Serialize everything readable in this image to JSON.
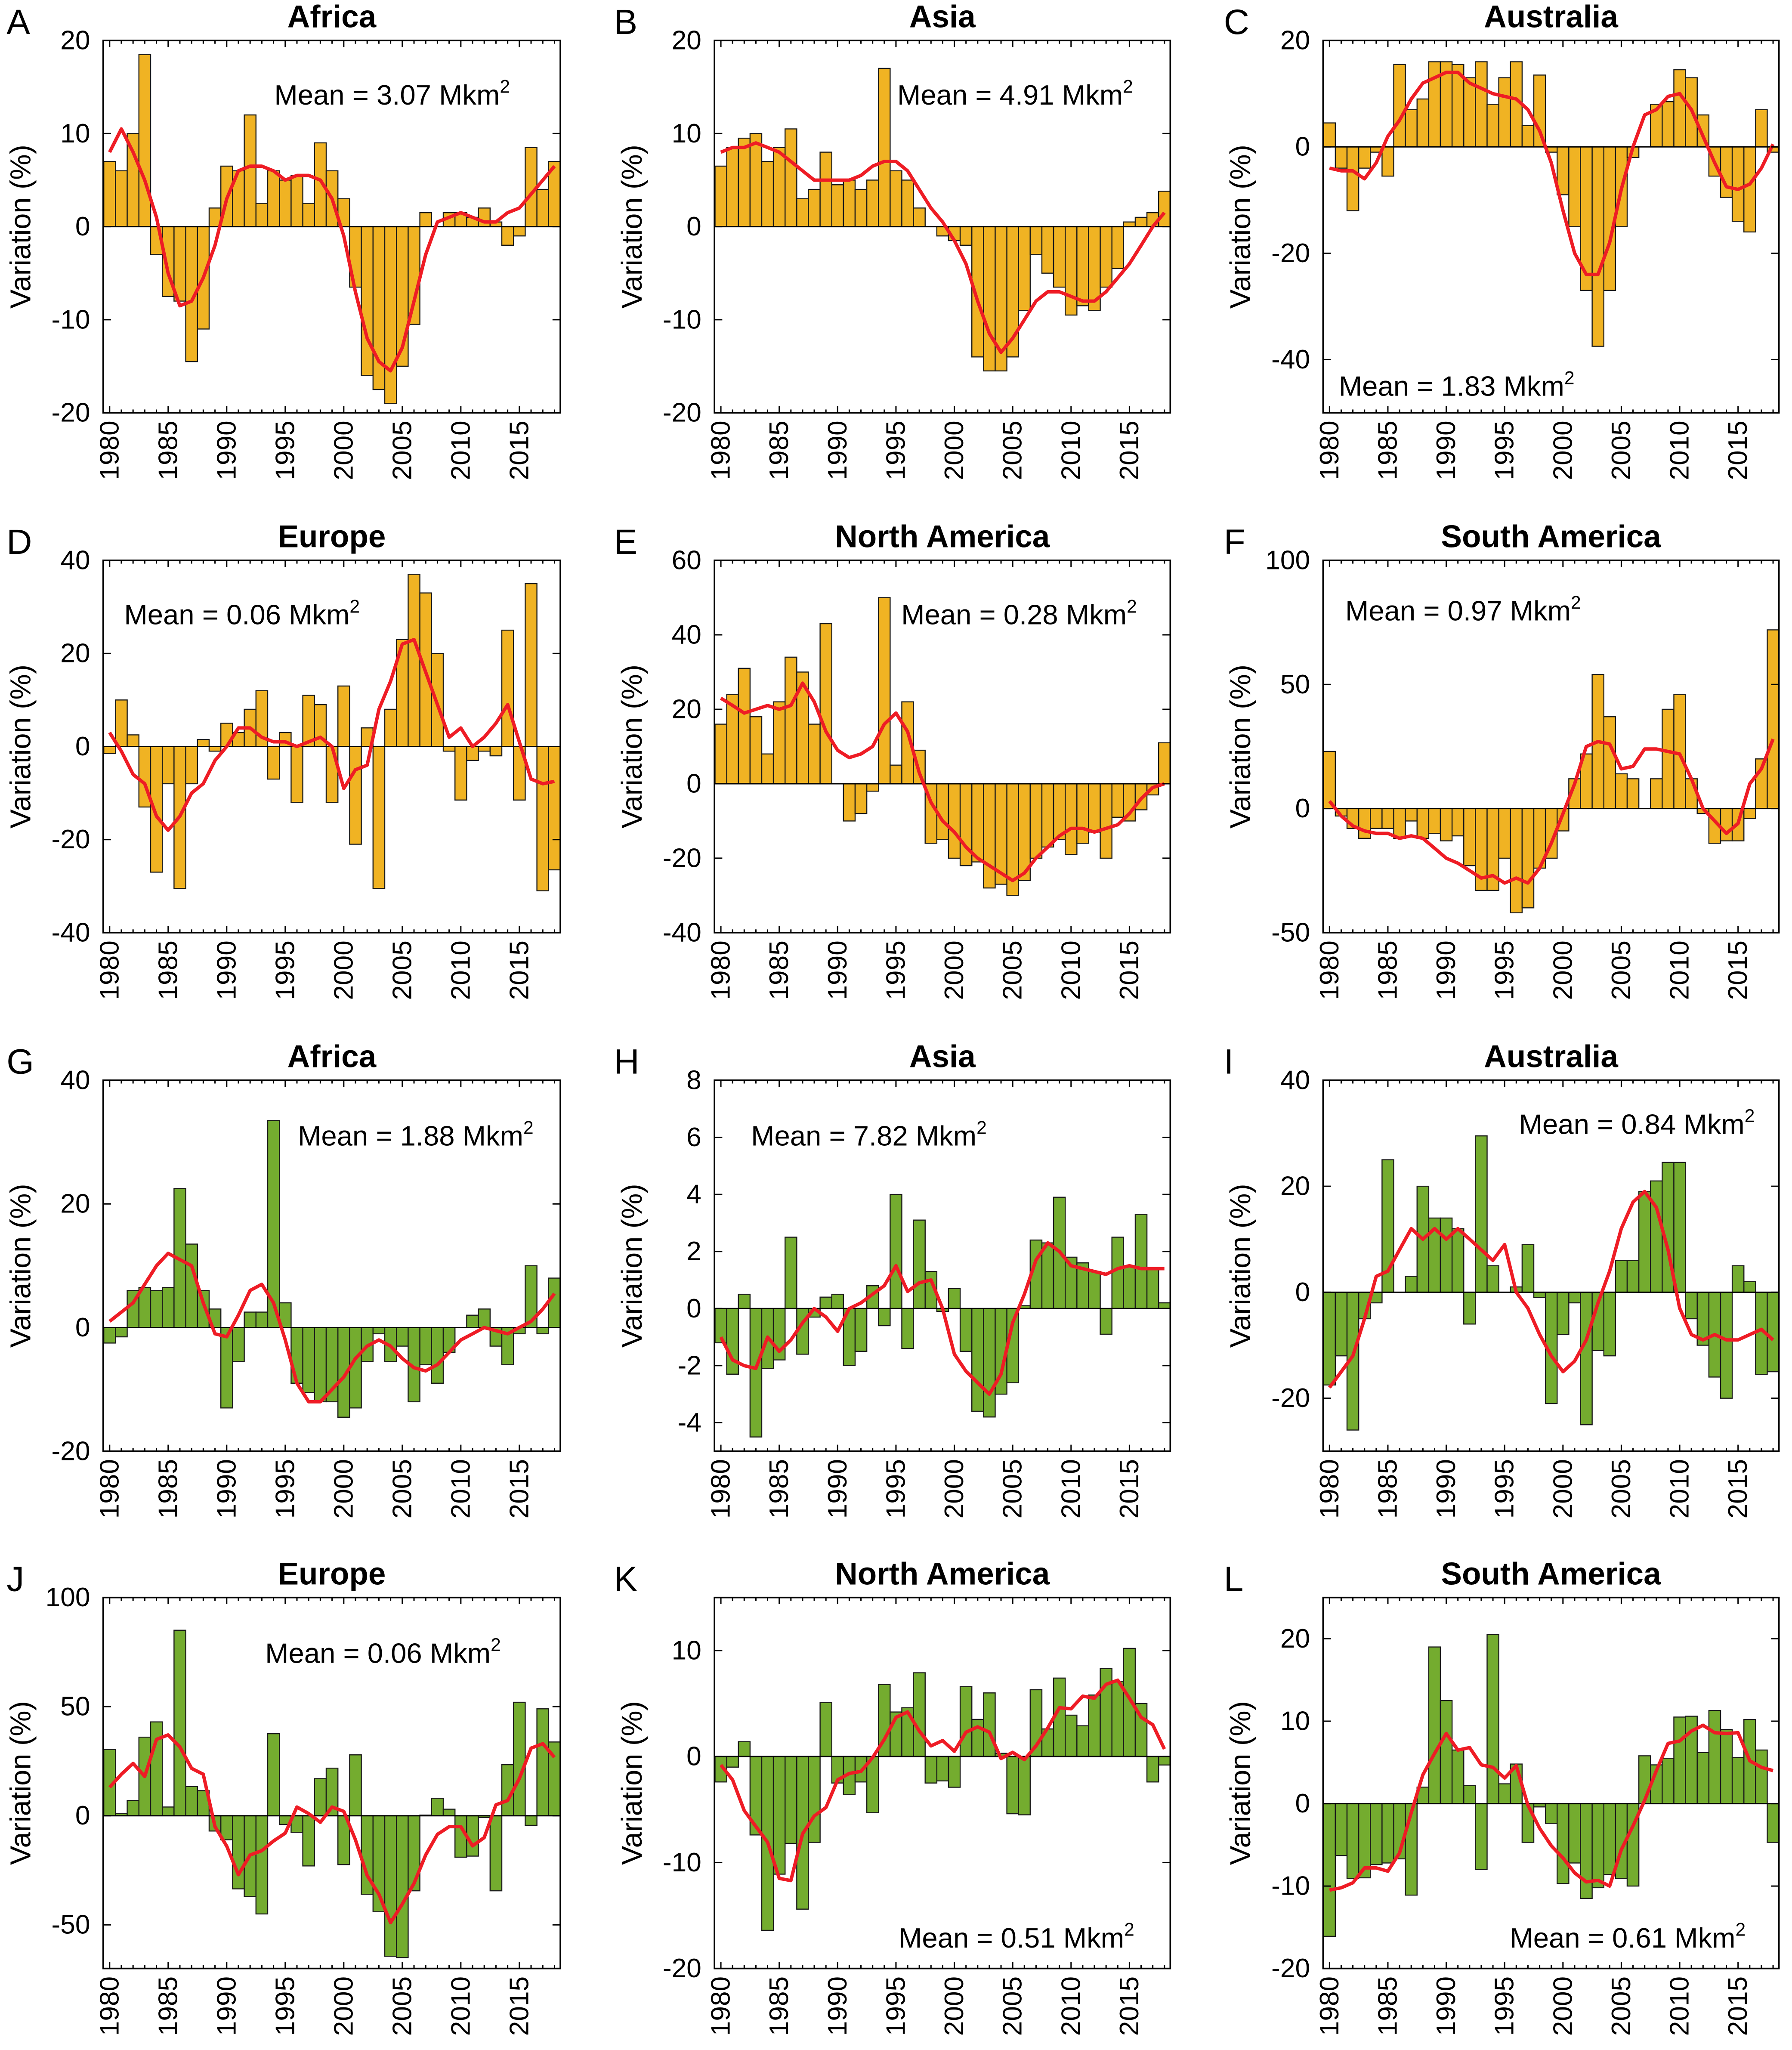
{
  "colors": {
    "bar_top_rows": "#F0B323",
    "bar_bottom_rows": "#74AC2F",
    "bar_edge": "#1a1a1a",
    "smooth_line": "#EE1C25"
  },
  "chart_data": [
    {
      "panel": "A",
      "type": "bar",
      "title": "Africa",
      "ylabel": "Variation (%)",
      "mean_text": "Mean = 3.07 Mkm",
      "mean_sup": "2",
      "ylim": [
        -20,
        20
      ],
      "yticks": [
        -20,
        -10,
        0,
        10,
        20
      ],
      "x_range": [
        1980,
        2018
      ],
      "xticks": [
        1980,
        1985,
        1990,
        1995,
        2000,
        2005,
        2010,
        2015
      ],
      "bars": [
        7,
        6,
        10,
        18.5,
        -3,
        -7.5,
        -8,
        -14.5,
        -11,
        2,
        6.5,
        6,
        12,
        2.5,
        6,
        5,
        5.5,
        2.5,
        9,
        6,
        3,
        -6.5,
        -16,
        -17.5,
        -19,
        -15,
        -10.5,
        1.5,
        0,
        1.5,
        1.5,
        1,
        2,
        0.5,
        -2,
        -1,
        8.5,
        4,
        7
      ],
      "smooth": [
        8,
        10.5,
        8,
        5,
        1,
        -5,
        -8.5,
        -8,
        -5.5,
        -2,
        3,
        6,
        6.5,
        6.5,
        6,
        5,
        5.5,
        5.5,
        5,
        3,
        -1,
        -7,
        -12,
        -14.5,
        -15.5,
        -13,
        -8,
        -3,
        0.5,
        1,
        1.5,
        1,
        0.5,
        0.5,
        1.5,
        2,
        3.5,
        5,
        6.5
      ]
    },
    {
      "panel": "B",
      "type": "bar",
      "title": "Asia",
      "ylabel": "Variation (%)",
      "mean_text": "Mean = 4.91 Mkm",
      "mean_sup": "2",
      "ylim": [
        -20,
        20
      ],
      "yticks": [
        -20,
        -10,
        0,
        10,
        20
      ],
      "x_range": [
        1980,
        2018
      ],
      "xticks": [
        1980,
        1985,
        1990,
        1995,
        2000,
        2005,
        2010,
        2015
      ],
      "bars": [
        6.5,
        8.5,
        9.5,
        10,
        7,
        8.5,
        10.5,
        3,
        4,
        8,
        4.5,
        5,
        4,
        5,
        17,
        6,
        5,
        2,
        0,
        -1,
        -1.5,
        -2,
        -14,
        -15.5,
        -15.5,
        -14,
        -9,
        -3,
        -5,
        -6.5,
        -9.5,
        -8.5,
        -9,
        -6.5,
        -4.5,
        0.5,
        1,
        1.5,
        3.8
      ],
      "smooth": [
        8,
        8.5,
        8.5,
        9,
        8.5,
        8,
        7,
        6,
        5,
        5,
        5,
        5,
        5.5,
        6.5,
        7,
        7,
        6,
        4,
        2,
        0.5,
        -1.5,
        -4,
        -8,
        -11.5,
        -13.5,
        -12,
        -10,
        -8,
        -7,
        -7,
        -7.5,
        -8,
        -8,
        -7,
        -5.5,
        -4,
        -2,
        0,
        1.5
      ]
    },
    {
      "panel": "C",
      "type": "bar",
      "title": "Australia",
      "ylabel": "Variation (%)",
      "mean_text": "Mean = 1.83 Mkm",
      "mean_sup": "2",
      "ylim": [
        -50,
        20
      ],
      "yticks": [
        -40,
        -20,
        0,
        20
      ],
      "x_range": [
        1980,
        2018
      ],
      "xticks": [
        1980,
        1985,
        1990,
        1995,
        2000,
        2005,
        2010,
        2015
      ],
      "bars": [
        4.5,
        -4,
        -12,
        -4,
        -1,
        -5.5,
        15.5,
        7,
        9,
        16,
        16,
        15.5,
        13,
        16,
        8,
        13,
        16,
        4,
        13.5,
        -1,
        -9,
        -15,
        -27,
        -37.5,
        -27,
        -15,
        -2,
        0,
        8,
        8.5,
        14.5,
        13,
        6,
        -5.5,
        -9.5,
        -14,
        -16,
        7,
        -1
      ],
      "smooth": [
        -4,
        -4.5,
        -4.5,
        -6,
        -3,
        2,
        5,
        9,
        12,
        13,
        14,
        14,
        12,
        11,
        10,
        9.5,
        9,
        7,
        3,
        -3,
        -12,
        -20,
        -24,
        -24,
        -18,
        -8,
        0,
        6,
        7,
        9.5,
        10,
        7,
        2,
        -3,
        -7.5,
        -8,
        -7,
        -4,
        0.5
      ]
    },
    {
      "panel": "D",
      "type": "bar",
      "title": "Europe",
      "ylabel": "Variation (%)",
      "mean_text": "Mean = 0.06 Mkm",
      "mean_sup": "2",
      "ylim": [
        -40,
        40
      ],
      "yticks": [
        -40,
        -20,
        0,
        20,
        40
      ],
      "x_range": [
        1980,
        2018
      ],
      "xticks": [
        1980,
        1985,
        1990,
        1995,
        2000,
        2005,
        2010,
        2015
      ],
      "bars": [
        -1.5,
        10,
        2.5,
        -13,
        -27,
        -8,
        -30.5,
        -8,
        1.5,
        -1,
        5,
        3,
        8,
        12,
        -7,
        3,
        -12,
        11,
        9,
        -12,
        13,
        -21,
        4,
        -30.5,
        8,
        23,
        37,
        33,
        20,
        -1,
        -11.5,
        -3,
        -1,
        -2,
        25,
        -11.5,
        35,
        -31,
        -26.5
      ],
      "smooth": [
        3,
        -1,
        -6,
        -8,
        -15,
        -18,
        -15,
        -10,
        -8,
        -3,
        0,
        4,
        4,
        2,
        1,
        1,
        0,
        1,
        2,
        0,
        -9,
        -5,
        -4,
        8,
        14,
        22,
        23,
        16,
        9,
        2,
        4,
        0,
        2,
        5,
        9,
        1,
        -7,
        -8,
        -7.5
      ]
    },
    {
      "panel": "E",
      "type": "bar",
      "title": "North America",
      "ylabel": "Variation (%)",
      "mean_text": "Mean = 0.28 Mkm",
      "mean_sup": "2",
      "ylim": [
        -40,
        60
      ],
      "yticks": [
        -40,
        -20,
        0,
        20,
        40,
        60
      ],
      "x_range": [
        1980,
        2018
      ],
      "xticks": [
        1980,
        1985,
        1990,
        1995,
        2000,
        2005,
        2010,
        2015
      ],
      "bars": [
        16,
        24,
        31,
        18,
        8,
        22,
        34,
        30,
        16,
        43,
        0,
        -10,
        -8,
        -2,
        50,
        5,
        22,
        9,
        -16,
        -15,
        -20,
        -22,
        -21,
        -28,
        -27,
        -30,
        -26,
        -20,
        -17,
        -15,
        -19,
        -16,
        -13,
        -20,
        -9,
        -10,
        -7,
        -3,
        11
      ],
      "smooth": [
        23,
        21,
        19,
        20,
        21,
        20,
        21,
        27,
        22,
        14,
        9,
        7,
        8,
        10,
        16,
        19,
        14,
        3,
        -5,
        -10,
        -13,
        -17,
        -20,
        -22,
        -24,
        -26,
        -24,
        -20,
        -17,
        -14,
        -12,
        -12,
        -13,
        -12,
        -11,
        -8,
        -4,
        -1,
        0
      ]
    },
    {
      "panel": "F",
      "type": "bar",
      "title": "South America",
      "ylabel": "Variation (%)",
      "mean_text": "Mean = 0.97 Mkm",
      "mean_sup": "2",
      "ylim": [
        -50,
        100
      ],
      "yticks": [
        -50,
        0,
        50,
        100
      ],
      "x_range": [
        1980,
        2018
      ],
      "xticks": [
        1980,
        1985,
        1990,
        1995,
        2000,
        2005,
        2010,
        2015
      ],
      "bars": [
        23,
        -3,
        -8,
        -12,
        -8,
        -8,
        -12,
        -5,
        -12,
        -10,
        -13,
        -11,
        -23,
        -33,
        -33,
        -20,
        -42,
        -40,
        -24,
        -20,
        -9,
        12,
        22,
        54,
        37,
        14,
        12,
        0,
        12,
        40,
        46,
        12,
        -2,
        -14,
        -13,
        -13,
        -4,
        20,
        72
      ],
      "smooth": [
        3,
        -3,
        -7,
        -9,
        -10,
        -10,
        -12,
        -11,
        -12,
        -16,
        -20,
        -22,
        -25,
        -28,
        -27,
        -30,
        -28,
        -30,
        -24,
        -14,
        -2,
        10,
        25,
        27,
        26,
        16,
        17,
        24,
        24,
        23,
        22,
        12,
        0,
        -5,
        -10,
        -6,
        10,
        16,
        28
      ]
    },
    {
      "panel": "G",
      "type": "bar",
      "title": "Africa",
      "ylabel": "Variation (%)",
      "mean_text": "Mean = 1.88 Mkm",
      "mean_sup": "2",
      "ylim": [
        -20,
        40
      ],
      "yticks": [
        -20,
        0,
        20,
        40
      ],
      "x_range": [
        1980,
        2018
      ],
      "xticks": [
        1980,
        1985,
        1990,
        1995,
        2000,
        2005,
        2010,
        2015
      ],
      "bars": [
        -2.5,
        -1.5,
        6,
        6.5,
        6,
        6.5,
        22.5,
        13.5,
        6,
        3,
        -13,
        -5.5,
        2.5,
        2.5,
        33.5,
        4,
        -9,
        -10.5,
        -12,
        -12,
        -14.5,
        -13,
        -5.5,
        -1,
        -5.5,
        -3,
        -12,
        -6,
        -9,
        -4,
        0,
        2,
        3,
        -3,
        -6,
        -1,
        10,
        -1,
        8
      ],
      "smooth": [
        1,
        2.5,
        4,
        7,
        10,
        12,
        11,
        10,
        4,
        -1,
        -1.5,
        2,
        6,
        7,
        4,
        -2,
        -9,
        -12,
        -12,
        -10,
        -8,
        -5,
        -3,
        -2,
        -3,
        -5,
        -6.5,
        -7,
        -6,
        -4,
        -2,
        -1,
        0,
        -0.5,
        -1,
        0,
        1,
        3,
        5.5
      ]
    },
    {
      "panel": "H",
      "type": "bar",
      "title": "Asia",
      "ylabel": "Variation (%)",
      "mean_text": "Mean = 7.82 Mkm",
      "mean_sup": "2",
      "ylim": [
        -5,
        8
      ],
      "yticks": [
        -4,
        -2,
        0,
        2,
        4,
        6,
        8
      ],
      "x_range": [
        1980,
        2018
      ],
      "xticks": [
        1980,
        1985,
        1990,
        1995,
        2000,
        2005,
        2010,
        2015
      ],
      "bars": [
        -1.2,
        -2.3,
        0.5,
        -4.5,
        -2.1,
        -1.8,
        2.5,
        -1.6,
        -0.3,
        0.4,
        0.5,
        -2,
        -1.5,
        0.8,
        -0.6,
        4,
        -1.4,
        3.1,
        1.3,
        -0.1,
        0.7,
        -1.5,
        -3.6,
        -3.8,
        -3,
        -2.6,
        0.1,
        2.4,
        2.3,
        3.9,
        1.8,
        1.6,
        1.3,
        -0.9,
        2.5,
        1.5,
        3.3,
        1.4,
        0.2
      ],
      "smooth": [
        -1,
        -1.8,
        -2,
        -2.1,
        -1,
        -1.5,
        -1.1,
        -0.5,
        0,
        -0.3,
        -0.8,
        0,
        0.2,
        0.5,
        0.8,
        1.5,
        0.6,
        0.9,
        1,
        0,
        -1.6,
        -2.2,
        -2.6,
        -3,
        -2.3,
        -0.5,
        0.5,
        1.7,
        2.3,
        2,
        1.5,
        1.4,
        1.3,
        1.2,
        1.4,
        1.5,
        1.4,
        1.4,
        1.4
      ]
    },
    {
      "panel": "I",
      "type": "bar",
      "title": "Australia",
      "ylabel": "Variation (%)",
      "mean_text": "Mean = 0.84 Mkm",
      "mean_sup": "2",
      "ylim": [
        -30,
        40
      ],
      "yticks": [
        -20,
        0,
        20,
        40
      ],
      "x_range": [
        1980,
        2018
      ],
      "xticks": [
        1980,
        1985,
        1990,
        1995,
        2000,
        2005,
        2010,
        2015
      ],
      "bars": [
        -17.5,
        -12,
        -26,
        -5,
        -2,
        25,
        0,
        3,
        20,
        14,
        14,
        12,
        -6,
        29.5,
        5,
        0,
        1,
        9,
        -1,
        -21,
        -8,
        -2,
        -25,
        -11,
        -12,
        6,
        6,
        19,
        21,
        24.5,
        24.5,
        -5,
        -10,
        -16,
        -20,
        5,
        2,
        -15.5,
        -15
      ],
      "smooth": [
        -18,
        -15,
        -12,
        -5,
        3,
        4,
        8,
        12,
        10,
        12,
        10,
        12,
        10,
        8,
        6,
        9,
        0,
        -3,
        -8,
        -12,
        -15,
        -13,
        -9,
        -2,
        4,
        12,
        17,
        19,
        16,
        8,
        -3,
        -8,
        -9,
        -8,
        -9,
        -9,
        -8,
        -7,
        -9
      ]
    },
    {
      "panel": "J",
      "type": "bar",
      "title": "Europe",
      "ylabel": "Variation (%)",
      "mean_text": "Mean = 0.06 Mkm",
      "mean_sup": "2",
      "ylim": [
        -70,
        100
      ],
      "yticks": [
        -50,
        0,
        50,
        100
      ],
      "x_range": [
        1980,
        2018
      ],
      "xticks": [
        1980,
        1985,
        1990,
        1995,
        2000,
        2005,
        2010,
        2015
      ],
      "bars": [
        30.4,
        1.1,
        7,
        36,
        43,
        4,
        85,
        13.4,
        11.5,
        -7,
        -11,
        -33.5,
        -37,
        -45,
        37.6,
        -4,
        -7.6,
        -23,
        17,
        21.8,
        -22.4,
        27.9,
        -36,
        -44,
        -64.4,
        -65,
        -34.4,
        0.3,
        8,
        3,
        -19,
        -18.5,
        -0.8,
        -34.4,
        23.4,
        52,
        -4.4,
        49,
        33.8
      ],
      "smooth": [
        13,
        19,
        24,
        18,
        35,
        37,
        31.5,
        21.7,
        19,
        -5,
        -14,
        -27,
        -18,
        -16,
        -11.6,
        -8,
        4,
        1,
        -3,
        4,
        2,
        -11,
        -27.4,
        -36,
        -49,
        -40.5,
        -31,
        -18,
        -8.5,
        -5,
        -5,
        -13.8,
        -10,
        5,
        7,
        17,
        31,
        33,
        26.8
      ]
    },
    {
      "panel": "K",
      "type": "bar",
      "title": "North America",
      "ylabel": "Variation (%)",
      "mean_text": "Mean = 0.51 Mkm",
      "mean_sup": "2",
      "ylim": [
        -20,
        15
      ],
      "yticks": [
        -20,
        -10,
        0,
        10
      ],
      "x_range": [
        1980,
        2018
      ],
      "xticks": [
        1980,
        1985,
        1990,
        1995,
        2000,
        2005,
        2010,
        2015
      ],
      "bars": [
        -2.4,
        -1,
        1.4,
        -7.4,
        -16.4,
        -11.1,
        -8.2,
        -14.4,
        -8.1,
        5.1,
        -2.5,
        -3.6,
        -2.4,
        -5.3,
        6.8,
        4.2,
        4.6,
        7.9,
        -2.5,
        -2.3,
        -2.9,
        6.6,
        3.5,
        6,
        0.3,
        -5.4,
        -5.5,
        6.3,
        2.6,
        7.4,
        3.9,
        2.9,
        5.8,
        8.3,
        7.1,
        10.2,
        5,
        -2.4,
        -0.8
      ],
      "smooth": [
        -0.8,
        -2.2,
        -5.1,
        -6.6,
        -8.1,
        -11.5,
        -11.7,
        -7.3,
        -5.6,
        -4.8,
        -2.2,
        -1.6,
        -1.4,
        -0.1,
        1.6,
        3.7,
        4.2,
        2.4,
        1,
        1.5,
        0.5,
        2.3,
        2.8,
        2.3,
        -0.2,
        0.4,
        -0.3,
        1,
        2.7,
        4.6,
        4.5,
        5.7,
        5.5,
        6.8,
        7.2,
        5.5,
        3.7,
        3,
        0.7
      ]
    },
    {
      "panel": "L",
      "type": "bar",
      "title": "South America",
      "ylabel": "Variation (%)",
      "mean_text": "Mean = 0.61 Mkm",
      "mean_sup": "2",
      "ylim": [
        -20,
        25
      ],
      "yticks": [
        -20,
        -10,
        0,
        10,
        20
      ],
      "x_range": [
        1980,
        2018
      ],
      "xticks": [
        1980,
        1985,
        1990,
        1995,
        2000,
        2005,
        2010,
        2015
      ],
      "bars": [
        -16.1,
        -6.3,
        -9.1,
        -9,
        -7.4,
        -7.2,
        -6.7,
        -11.1,
        2,
        19,
        12.5,
        6.5,
        2.2,
        -8,
        20.5,
        2.4,
        4.8,
        -4.7,
        -0.4,
        -2.4,
        -9.7,
        -7.2,
        -11.5,
        -10.2,
        -8.6,
        -9.1,
        -10,
        5.8,
        4.7,
        5.5,
        10.5,
        10.6,
        6.2,
        11.3,
        9,
        5.6,
        10.2,
        6.5,
        -4.7
      ],
      "smooth": [
        -10.5,
        -10.2,
        -9.6,
        -7.8,
        -7.8,
        -8.2,
        -6,
        -1.1,
        3.5,
        6.1,
        8.5,
        6.5,
        6.8,
        4.7,
        4.4,
        3.1,
        4.6,
        -0.2,
        -3,
        -5.1,
        -6.6,
        -8.4,
        -9.5,
        -9.3,
        -10,
        -5.6,
        -2.7,
        0.4,
        4,
        7.3,
        7.6,
        8.8,
        9.5,
        8.6,
        8.5,
        8.6,
        5.2,
        4.4,
        4
      ]
    }
  ]
}
